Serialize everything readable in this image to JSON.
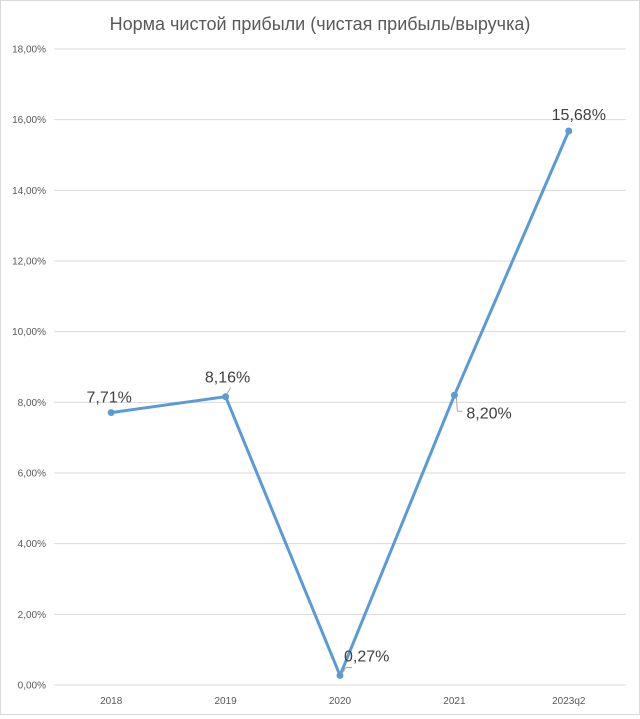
{
  "chart_data": {
    "type": "line",
    "title": "Норма чистой прибыли (чистая прибыль/выручка)",
    "categories": [
      "2018",
      "2019",
      "2020",
      "2021",
      "2023q2"
    ],
    "series": [
      {
        "values": [
          7.71,
          8.16,
          0.27,
          8.2,
          15.68
        ],
        "labels": [
          "7,71%",
          "8,16%",
          "0,27%",
          "8,20%",
          "15,68%"
        ],
        "color": "#5b9bd5"
      }
    ],
    "ylim": [
      0,
      18
    ],
    "yticks": [
      0,
      2,
      4,
      6,
      8,
      10,
      12,
      14,
      16,
      18
    ],
    "ytick_labels": [
      "0,00%",
      "2,00%",
      "4,00%",
      "6,00%",
      "8,00%",
      "10,00%",
      "12,00%",
      "14,00%",
      "16,00%",
      "18,00%"
    ],
    "grid": true,
    "legend": "none",
    "xlabel": "",
    "ylabel": ""
  }
}
